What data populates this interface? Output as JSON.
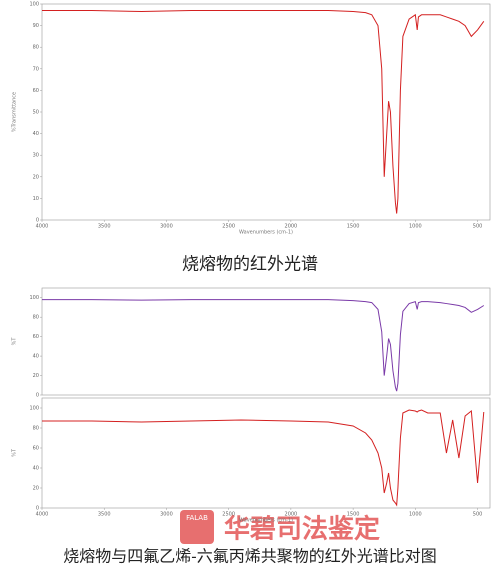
{
  "chart_data": [
    {
      "type": "line",
      "xlabel": "Wavenumbers (cm-1)",
      "ylabel": "%Transmittance",
      "x": [
        4000,
        3600,
        3200,
        2800,
        2400,
        2000,
        1700,
        1500,
        1400,
        1350,
        1300,
        1270,
        1250,
        1230,
        1215,
        1200,
        1180,
        1160,
        1150,
        1140,
        1120,
        1100,
        1050,
        1000,
        985,
        975,
        950,
        900,
        800,
        750,
        700,
        650,
        600,
        550,
        500,
        450
      ],
      "series": [
        {
          "name": "烧熔物",
          "color": "#d42020",
          "values": [
            97,
            97,
            96.5,
            97,
            97,
            97,
            97,
            96.5,
            96,
            95,
            90,
            70,
            20,
            40,
            55,
            50,
            25,
            8,
            3,
            10,
            60,
            85,
            93,
            95,
            88,
            94,
            95,
            95,
            95,
            94,
            93,
            92,
            90,
            85,
            88,
            92
          ]
        }
      ],
      "xlim": [
        4000,
        400
      ],
      "xticks": [
        4000,
        3500,
        3000,
        2500,
        2000,
        1500,
        1000,
        500
      ],
      "ylim": [
        0,
        100
      ],
      "yticks": [
        0,
        10,
        20,
        30,
        40,
        50,
        60,
        70,
        80,
        90,
        100
      ]
    },
    {
      "type": "line",
      "xlabel": "",
      "ylabel": "%T",
      "x": [
        4000,
        3600,
        3200,
        2800,
        2400,
        2000,
        1700,
        1500,
        1400,
        1350,
        1300,
        1270,
        1250,
        1230,
        1215,
        1200,
        1180,
        1160,
        1150,
        1140,
        1120,
        1100,
        1050,
        1000,
        985,
        975,
        950,
        900,
        800,
        750,
        700,
        650,
        600,
        550,
        500,
        450
      ],
      "series": [
        {
          "name": "烧熔物",
          "color": "#7a3aa8",
          "values": [
            98,
            98,
            97.5,
            98,
            98,
            98,
            98,
            97,
            96,
            95,
            88,
            65,
            20,
            40,
            58,
            52,
            25,
            8,
            4,
            12,
            62,
            86,
            94,
            96,
            88,
            95,
            96,
            96,
            95,
            94,
            93,
            92,
            90,
            85,
            88,
            92
          ]
        }
      ],
      "xlim": [
        4000,
        400
      ],
      "xticks": [],
      "ylim": [
        0,
        110
      ],
      "yticks": [
        0,
        20,
        40,
        60,
        80,
        100
      ]
    },
    {
      "type": "line",
      "xlabel": "Wavenumbers (cm-1)",
      "ylabel": "%T",
      "x": [
        4000,
        3600,
        3200,
        2800,
        2400,
        2000,
        1700,
        1500,
        1400,
        1350,
        1300,
        1270,
        1250,
        1230,
        1215,
        1200,
        1180,
        1160,
        1150,
        1140,
        1120,
        1100,
        1050,
        1000,
        985,
        975,
        950,
        900,
        800,
        750,
        700,
        650,
        600,
        550,
        500,
        450
      ],
      "series": [
        {
          "name": "四氟乙烯-六氟丙烯共聚物",
          "color": "#d42020",
          "values": [
            87,
            87,
            86,
            87,
            88,
            87,
            86,
            82,
            75,
            68,
            55,
            40,
            15,
            25,
            35,
            20,
            8,
            5,
            3,
            20,
            70,
            95,
            98,
            97,
            96,
            97,
            98,
            95,
            95,
            55,
            88,
            50,
            92,
            97,
            25,
            96
          ]
        }
      ],
      "xlim": [
        4000,
        400
      ],
      "xticks": [
        4000,
        3500,
        3000,
        2500,
        2000,
        1500,
        1000,
        500
      ],
      "ylim": [
        0,
        110
      ],
      "yticks": [
        0,
        20,
        40,
        60,
        80,
        100
      ]
    }
  ],
  "captions": [
    "烧熔物的红外光谱",
    "烧熔物与四氟乙烯-六氟丙烯共聚物的红外光谱比对图"
  ],
  "watermark": {
    "logo": "FALAB",
    "text": "华碧司法鉴定"
  }
}
